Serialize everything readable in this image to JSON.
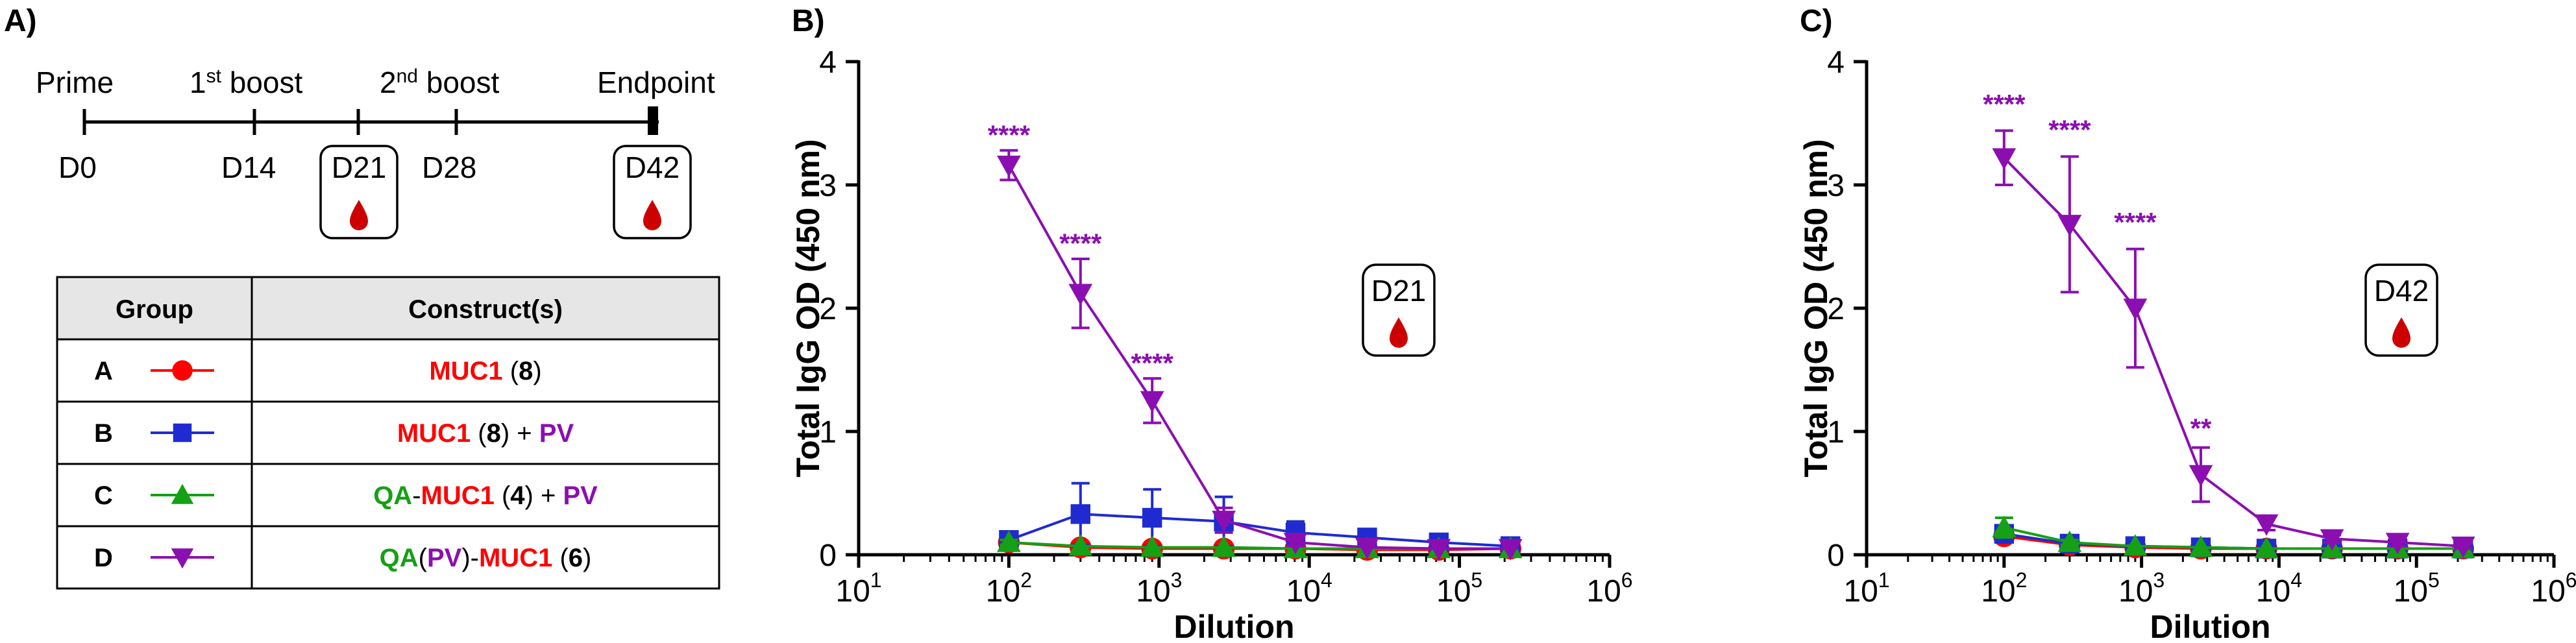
{
  "colors": {
    "red": "#ff0000",
    "blue": "#1f2bd0",
    "green": "#15a015",
    "purple": "#8b0fb0",
    "black": "#000000",
    "header_gray": "#e6e6e6",
    "blood": "#cc0000"
  },
  "panelA": {
    "label": "A)",
    "timeline": {
      "prime": "Prime",
      "boost1_num": "1",
      "boost1_sup": "st",
      "boost1_word": " boost",
      "boost2_num": "2",
      "boost2_sup": "nd",
      "boost2_word": " boost",
      "endpoint": "Endpoint",
      "d0": "D0",
      "d14": "D14",
      "d21": "D21",
      "d28": "D28",
      "d42": "D42"
    },
    "table": {
      "headers": [
        "Group",
        "Construct(s)"
      ],
      "rows": [
        {
          "group": "A",
          "marker": "circle",
          "color": "#ff0000",
          "parts": [
            {
              "t": "MUC1",
              "c": "#ff0000",
              "b": true
            },
            {
              "t": " (",
              "c": "#000000",
              "b": false
            },
            {
              "t": "8",
              "c": "#000000",
              "b": true
            },
            {
              "t": ")",
              "c": "#000000",
              "b": false
            }
          ]
        },
        {
          "group": "B",
          "marker": "square",
          "color": "#1f2bd0",
          "parts": [
            {
              "t": "MUC1",
              "c": "#ff0000",
              "b": true
            },
            {
              "t": " (",
              "c": "#000000",
              "b": false
            },
            {
              "t": "8",
              "c": "#000000",
              "b": true
            },
            {
              "t": ") + ",
              "c": "#000000",
              "b": false
            },
            {
              "t": "PV",
              "c": "#8b0fb0",
              "b": true
            }
          ]
        },
        {
          "group": "C",
          "marker": "triangle-up",
          "color": "#15a015",
          "parts": [
            {
              "t": "QA",
              "c": "#15a015",
              "b": true
            },
            {
              "t": "-",
              "c": "#000000",
              "b": false
            },
            {
              "t": "MUC1",
              "c": "#ff0000",
              "b": true
            },
            {
              "t": " (",
              "c": "#000000",
              "b": false
            },
            {
              "t": "4",
              "c": "#000000",
              "b": true
            },
            {
              "t": ") + ",
              "c": "#000000",
              "b": false
            },
            {
              "t": "PV",
              "c": "#8b0fb0",
              "b": true
            }
          ]
        },
        {
          "group": "D",
          "marker": "triangle-down",
          "color": "#8b0fb0",
          "parts": [
            {
              "t": "QA",
              "c": "#15a015",
              "b": true
            },
            {
              "t": "(",
              "c": "#000000",
              "b": false
            },
            {
              "t": "PV",
              "c": "#8b0fb0",
              "b": true
            },
            {
              "t": ")-",
              "c": "#000000",
              "b": false
            },
            {
              "t": "MUC1",
              "c": "#ff0000",
              "b": true
            },
            {
              "t": " (",
              "c": "#000000",
              "b": false
            },
            {
              "t": "6",
              "c": "#000000",
              "b": true
            },
            {
              "t": ")",
              "c": "#000000",
              "b": false
            }
          ]
        }
      ]
    }
  },
  "chart_data": [
    {
      "panel_label": "B)",
      "type": "line",
      "x_scale": "log10",
      "xlim": [
        10,
        1000000
      ],
      "ylim": [
        0,
        4
      ],
      "xlabel": "Dilution",
      "ylabel": "Total IgG OD (450 nm)",
      "x_ticks": [
        1,
        2,
        3,
        4,
        5,
        6
      ],
      "y_ticks": [
        "0",
        "1",
        "2",
        "3",
        "4"
      ],
      "badge": "D21",
      "x": [
        100,
        300,
        900,
        2700,
        8100,
        24300,
        72900,
        218700
      ],
      "series": [
        {
          "name": "A",
          "marker": "circle",
          "color": "#ff0000",
          "values": [
            0.1,
            0.06,
            0.05,
            0.05,
            0.05,
            0.04,
            0.04,
            0.05
          ],
          "errors": [
            0.02,
            0.01,
            0.01,
            0.01,
            0.01,
            0.01,
            0.01,
            0.01
          ]
        },
        {
          "name": "B",
          "marker": "square",
          "color": "#1f2bd0",
          "values": [
            0.12,
            0.33,
            0.3,
            0.27,
            0.18,
            0.14,
            0.1,
            0.07
          ],
          "errors": [
            0.05,
            0.25,
            0.23,
            0.2,
            0.09,
            0.05,
            0.03,
            0.02
          ]
        },
        {
          "name": "C",
          "marker": "triangle-up",
          "color": "#15a015",
          "values": [
            0.1,
            0.07,
            0.06,
            0.06,
            0.05,
            0.05,
            0.05,
            0.05
          ],
          "errors": [
            0.02,
            0.01,
            0.01,
            0.01,
            0.01,
            0.01,
            0.01,
            0.01
          ]
        },
        {
          "name": "D",
          "marker": "triangle-down",
          "color": "#8b0fb0",
          "values": [
            3.16,
            2.12,
            1.25,
            0.28,
            0.1,
            0.06,
            0.05,
            0.05
          ],
          "errors": [
            0.12,
            0.28,
            0.18,
            0.1,
            0.03,
            0.01,
            0.01,
            0.01
          ]
        }
      ],
      "annotations": [
        {
          "text": "****",
          "x": 100,
          "y": 3.33
        },
        {
          "text": "****",
          "x": 300,
          "y": 2.45
        },
        {
          "text": "****",
          "x": 900,
          "y": 1.48
        }
      ]
    },
    {
      "panel_label": "C)",
      "type": "line",
      "x_scale": "log10",
      "xlim": [
        10,
        1000000
      ],
      "ylim": [
        0,
        4
      ],
      "xlabel": "Dilution",
      "ylabel": "Total IgG OD (450 nm)",
      "x_ticks": [
        1,
        2,
        3,
        4,
        5,
        6
      ],
      "y_ticks": [
        "0",
        "1",
        "2",
        "3",
        "4"
      ],
      "badge": "D42",
      "x": [
        100,
        300,
        900,
        2700,
        8100,
        24300,
        72900,
        218700
      ],
      "series": [
        {
          "name": "A",
          "marker": "circle",
          "color": "#ff0000",
          "values": [
            0.15,
            0.08,
            0.06,
            0.05,
            0.05,
            0.05,
            0.05,
            0.05
          ],
          "errors": [
            0.03,
            0.02,
            0.01,
            0.01,
            0.01,
            0.01,
            0.01,
            0.01
          ]
        },
        {
          "name": "B",
          "marker": "square",
          "color": "#1f2bd0",
          "values": [
            0.17,
            0.09,
            0.07,
            0.06,
            0.05,
            0.05,
            0.05,
            0.05
          ],
          "errors": [
            0.05,
            0.02,
            0.01,
            0.01,
            0.01,
            0.01,
            0.01,
            0.01
          ]
        },
        {
          "name": "C",
          "marker": "triangle-up",
          "color": "#15a015",
          "values": [
            0.22,
            0.1,
            0.07,
            0.06,
            0.05,
            0.05,
            0.05,
            0.05
          ],
          "errors": [
            0.08,
            0.02,
            0.01,
            0.01,
            0.01,
            0.01,
            0.01,
            0.01
          ]
        },
        {
          "name": "D",
          "marker": "triangle-down",
          "color": "#8b0fb0",
          "values": [
            3.22,
            2.68,
            2.0,
            0.65,
            0.25,
            0.13,
            0.1,
            0.07
          ],
          "errors": [
            0.22,
            0.55,
            0.48,
            0.22,
            0.05,
            0.03,
            0.03,
            0.02
          ]
        }
      ],
      "annotations": [
        {
          "text": "****",
          "x": 100,
          "y": 3.58
        },
        {
          "text": "****",
          "x": 300,
          "y": 3.37
        },
        {
          "text": "****",
          "x": 900,
          "y": 2.62
        },
        {
          "text": "**",
          "x": 2700,
          "y": 0.95
        }
      ]
    }
  ]
}
